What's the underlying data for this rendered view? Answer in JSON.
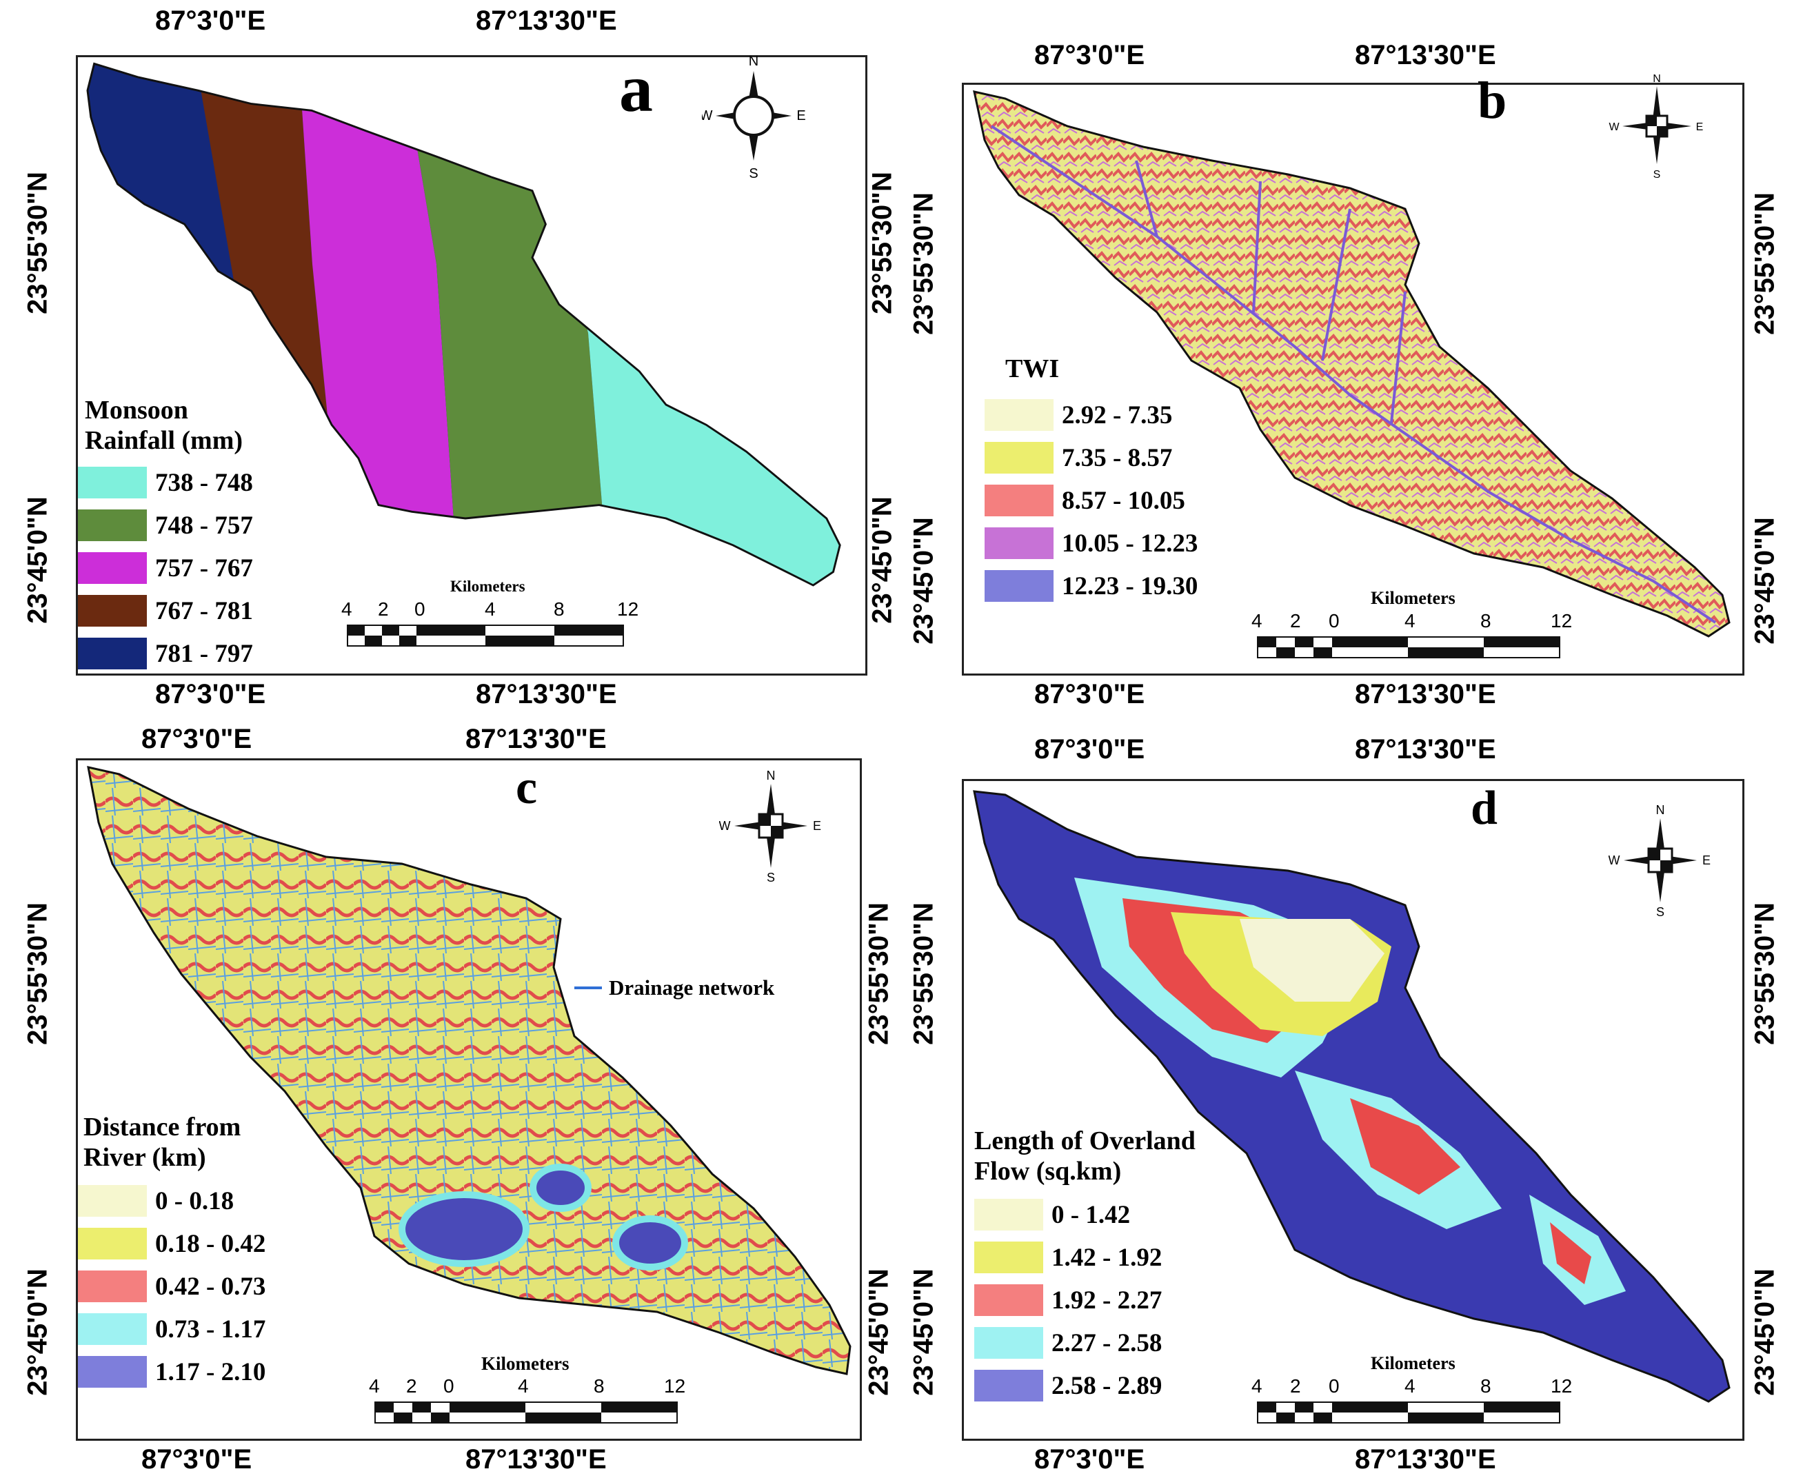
{
  "panels": [
    {
      "letter": "a",
      "top_ticks": [
        "87°3'0\"E",
        "87°13'30\"E"
      ],
      "bottom_ticks": [
        "87°3'0\"E",
        "87°13'30\"E"
      ],
      "left_ticks": [
        "23°55'30\"N",
        "23°45'0\"N"
      ],
      "right_ticks": [
        "23°55'30\"N",
        "23°45'0\"N"
      ],
      "legend_title": [
        "Monsoon",
        "Rainfall (mm)"
      ],
      "legend": [
        {
          "label": "738 - 748",
          "color": "#7ff0dc"
        },
        {
          "label": "748 - 757",
          "color": "#5e8c3c"
        },
        {
          "label": "757 - 767",
          "color": "#cc2ed9"
        },
        {
          "label": "767 - 781",
          "color": "#6b2a10"
        },
        {
          "label": "781 - 797",
          "color": "#14287a"
        }
      ],
      "scale_title": "Kilometers",
      "scale_numbers": [
        "4",
        "2",
        "0",
        "4",
        "8",
        "12"
      ],
      "compass": {
        "n": "N",
        "s": "S",
        "e": "E",
        "w": "W"
      }
    },
    {
      "letter": "b",
      "top_ticks": [
        "87°3'0\"E",
        "87°13'30\"E"
      ],
      "bottom_ticks": [
        "87°3'0\"E",
        "87°13'30\"E"
      ],
      "left_ticks": [
        "23°55'30\"N",
        "23°45'0\"N"
      ],
      "right_ticks": [
        "23°55'30\"N",
        "23°45'0\"N"
      ],
      "legend_title": [
        "TWI"
      ],
      "legend": [
        {
          "label": "2.92 - 7.35",
          "color": "#f6f7cf"
        },
        {
          "label": "7.35 - 8.57",
          "color": "#ecee6e"
        },
        {
          "label": "8.57 - 10.05",
          "color": "#f47f7f"
        },
        {
          "label": "10.05 - 12.23",
          "color": "#c772d6"
        },
        {
          "label": "12.23 - 19.30",
          "color": "#7e7edb"
        }
      ],
      "scale_title": "Kilometers",
      "scale_numbers": [
        "4",
        "2",
        "0",
        "4",
        "8",
        "12"
      ],
      "compass": {
        "n": "N",
        "s": "S",
        "e": "E",
        "w": "W"
      }
    },
    {
      "letter": "c",
      "top_ticks": [
        "87°3'0\"E",
        "87°13'30\"E"
      ],
      "bottom_ticks": [
        "87°3'0\"E",
        "87°13'30\"E"
      ],
      "left_ticks": [
        "23°55'30\"N",
        "23°45'0\"N"
      ],
      "right_ticks": [
        "23°55'30\"N",
        "23°45'0\"N"
      ],
      "legend_title": [
        "Distance from",
        "River (km)"
      ],
      "legend": [
        {
          "label": "0 - 0.18",
          "color": "#f6f7cf"
        },
        {
          "label": "0.18 - 0.42",
          "color": "#ecee6e"
        },
        {
          "label": "0.42 - 0.73",
          "color": "#f47f7f"
        },
        {
          "label": "0.73 - 1.17",
          "color": "#9ef2f2"
        },
        {
          "label": "1.17 - 2.10",
          "color": "#7e7edb"
        }
      ],
      "annotation": "Drainage network",
      "scale_title": "Kilometers",
      "scale_numbers": [
        "4",
        "2",
        "0",
        "4",
        "8",
        "12"
      ],
      "compass": {
        "n": "N",
        "s": "S",
        "e": "E",
        "w": "W"
      }
    },
    {
      "letter": "d",
      "top_ticks": [
        "87°3'0\"E",
        "87°13'30\"E"
      ],
      "bottom_ticks": [
        "87°3'0\"E",
        "87°13'30\"E"
      ],
      "left_ticks": [
        "23°55'30\"N",
        "23°45'0\"N"
      ],
      "right_ticks": [
        "23°55'30\"N",
        "23°45'0\"N"
      ],
      "legend_title": [
        "Length of Overland",
        "Flow (sq.km)"
      ],
      "legend": [
        {
          "label": "0 - 1.42",
          "color": "#f6f7cf"
        },
        {
          "label": "1.42 - 1.92",
          "color": "#ecee6e"
        },
        {
          "label": "1.92 - 2.27",
          "color": "#f47f7f"
        },
        {
          "label": "2.27 - 2.58",
          "color": "#9ef2f2"
        },
        {
          "label": "2.58 - 2.89",
          "color": "#7e7edb"
        }
      ],
      "scale_title": "Kilometers",
      "scale_numbers": [
        "4",
        "2",
        "0",
        "4",
        "8",
        "12"
      ],
      "compass": {
        "n": "N",
        "s": "S",
        "e": "E",
        "w": "W"
      }
    }
  ]
}
